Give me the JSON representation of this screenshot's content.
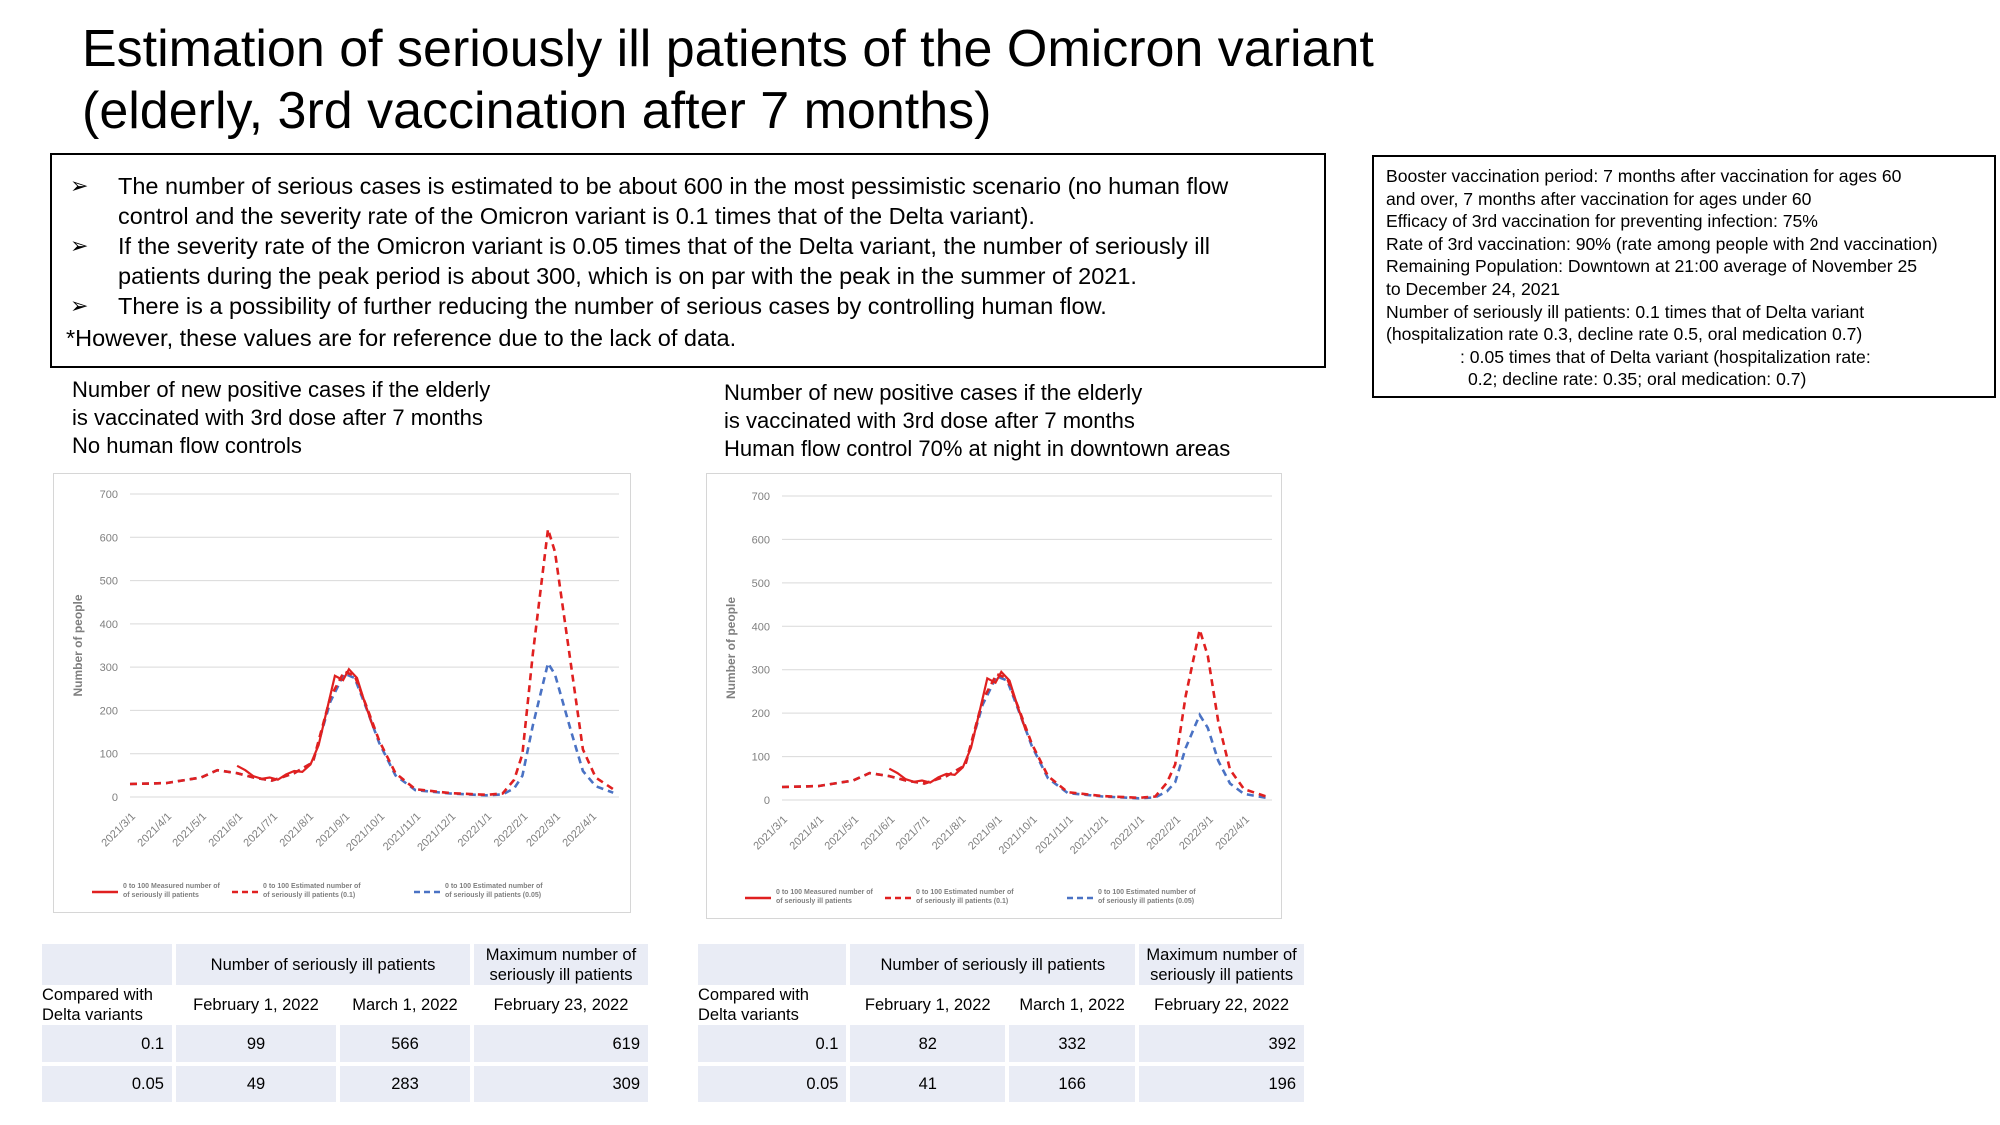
{
  "title": {
    "line1": "Estimation of seriously ill patients of the Omicron variant",
    "line2": "(elderly, 3rd vaccination after 7 months)"
  },
  "summary": {
    "bullets": [
      {
        "line1": "The number of serious cases is estimated to be about 600 in the most pessimistic scenario (no human flow",
        "line2": "control and the severity rate of the Omicron variant is 0.1 times that of the Delta variant)."
      },
      {
        "line1": "If the severity rate of the Omicron variant is 0.05 times that of the Delta variant, the number of seriously ill",
        "line2": "patients during the peak period is about 300, which is on par with the peak in the summer of 2021."
      },
      {
        "line1": "There is a possibility of further reducing the number of serious cases by controlling human flow.",
        "line2": ""
      }
    ],
    "note": "*However, these values are for reference due to the lack of data.",
    "arrow_icon": "➢"
  },
  "params": {
    "lines": [
      "Booster vaccination period: 7 months after vaccination for ages 60",
      "and over, 7 months after vaccination for ages under 60",
      "Efficacy of 3rd vaccination for preventing infection: 75%",
      "Rate of 3rd vaccination: 90% (rate among people with 2nd vaccination)",
      "Remaining Population: Downtown at 21:00 average of November 25",
      "to December 24, 2021",
      "Number of seriously ill patients: 0.1 times that of Delta variant",
      "(hospitalization rate 0.3, decline rate 0.5, oral medication 0.7)",
      ": 0.05 times that of Delta variant (hospitalization rate:",
      "0.2; decline rate: 0.35; oral medication: 0.7)"
    ]
  },
  "left_panel": {
    "title": [
      "Number of new positive cases if the elderly",
      "is vaccinated with 3rd dose after 7 months",
      "No human flow controls"
    ],
    "table": {
      "header_col2": "Number of seriously ill patients",
      "header_col4": [
        "Maximum number of",
        "seriously ill patients"
      ],
      "row_label": [
        "Compared with",
        "Delta variants"
      ],
      "subheaders": [
        "February 1, 2022",
        "March 1, 2022",
        "February 23, 2022"
      ],
      "rows": [
        {
          "ratio": "0.1",
          "v1": "99",
          "v2": "566",
          "v3": "619"
        },
        {
          "ratio": "0.05",
          "v1": "49",
          "v2": "283",
          "v3": "309"
        }
      ]
    }
  },
  "right_panel": {
    "title": [
      "Number of new positive cases if the elderly",
      "is vaccinated with 3rd dose after 7 months",
      "Human flow control 70% at night in downtown areas"
    ],
    "table": {
      "header_col2": "Number of seriously ill patients",
      "header_col4": [
        "Maximum number of",
        "seriously ill patients"
      ],
      "row_label": [
        "Compared with",
        "Delta variants"
      ],
      "subheaders": [
        "February 1, 2022",
        "March 1, 2022",
        "February 22, 2022"
      ],
      "rows": [
        {
          "ratio": "0.1",
          "v1": "82",
          "v2": "332",
          "v3": "392"
        },
        {
          "ratio": "0.05",
          "v1": "41",
          "v2": "166",
          "v3": "196"
        }
      ]
    }
  },
  "colors": {
    "measured": "#e02020",
    "est01": "#e02020",
    "est005": "#4a72c4",
    "grid": "#d9d9d9",
    "axis_text": "#7f7f7f",
    "table_shade": "#e9ecf5"
  },
  "chart_data": [
    {
      "type": "line",
      "title": "",
      "ylabel": "Number of people",
      "ylim": [
        0,
        700
      ],
      "yticks": [
        0,
        100,
        200,
        300,
        400,
        500,
        600,
        700
      ],
      "xticks": [
        "2021/3/1",
        "2021/4/1",
        "2021/5/1",
        "2021/6/1",
        "2021/7/1",
        "2021/8/1",
        "2021/9/1",
        "2021/10/1",
        "2021/11/1",
        "2021/12/1",
        "2022/1/1",
        "2022/2/1",
        "2022/3/1",
        "2022/4/1"
      ],
      "grid": true,
      "legend": "bottom",
      "legend_entries": [
        "0 to 100 Measured number of seriously ill patients",
        "0 to 100 Estimated number of seriously ill patients (0.1)",
        "0 to 100 Estimated number of seriously ill patients (0.05)"
      ],
      "series": [
        {
          "name": "0 to 100 Measured number of seriously ill patients",
          "style": "solid",
          "points": [
            [
              "2021/6/1",
              72
            ],
            [
              "2021/6/8",
              62
            ],
            [
              "2021/6/15",
              48
            ],
            [
              "2021/6/22",
              42
            ],
            [
              "2021/6/29",
              45
            ],
            [
              "2021/7/6",
              40
            ],
            [
              "2021/7/13",
              52
            ],
            [
              "2021/7/20",
              60
            ],
            [
              "2021/7/27",
              58
            ],
            [
              "2021/8/3",
              75
            ],
            [
              "2021/8/10",
              120
            ],
            [
              "2021/8/17",
              200
            ],
            [
              "2021/8/24",
              280
            ],
            [
              "2021/8/31",
              270
            ],
            [
              "2021/9/5",
              295
            ],
            [
              "2021/9/12",
              275
            ],
            [
              "2021/9/19",
              215
            ],
            [
              "2021/9/26",
              160
            ]
          ]
        },
        {
          "name": "0 to 100 Estimated number of seriously ill patients (0.1)",
          "style": "dashed",
          "points": [
            [
              "2021/3/1",
              30
            ],
            [
              "2021/4/1",
              32
            ],
            [
              "2021/5/1",
              45
            ],
            [
              "2021/5/15",
              62
            ],
            [
              "2021/6/1",
              55
            ],
            [
              "2021/6/15",
              45
            ],
            [
              "2021/7/1",
              38
            ],
            [
              "2021/7/20",
              55
            ],
            [
              "2021/8/5",
              80
            ],
            [
              "2021/8/20",
              230
            ],
            [
              "2021/9/1",
              290
            ],
            [
              "2021/9/10",
              280
            ],
            [
              "2021/9/20",
              210
            ],
            [
              "2021/10/1",
              130
            ],
            [
              "2021/10/15",
              55
            ],
            [
              "2021/11/1",
              18
            ],
            [
              "2021/12/1",
              9
            ],
            [
              "2022/1/1",
              5
            ],
            [
              "2022/1/15",
              8
            ],
            [
              "2022/1/25",
              40
            ],
            [
              "2022/2/1",
              99
            ],
            [
              "2022/2/10",
              330
            ],
            [
              "2022/2/23",
              619
            ],
            [
              "2022/3/1",
              566
            ],
            [
              "2022/3/15",
              300
            ],
            [
              "2022/3/25",
              110
            ],
            [
              "2022/4/5",
              45
            ],
            [
              "2022/4/20",
              18
            ]
          ]
        },
        {
          "name": "0 to 100 Estimated number of seriously ill patients (0.05)",
          "style": "dashed",
          "points": [
            [
              "2021/3/1",
              30
            ],
            [
              "2021/4/1",
              32
            ],
            [
              "2021/5/1",
              45
            ],
            [
              "2021/5/15",
              62
            ],
            [
              "2021/6/1",
              55
            ],
            [
              "2021/6/15",
              45
            ],
            [
              "2021/7/1",
              38
            ],
            [
              "2021/7/20",
              55
            ],
            [
              "2021/8/5",
              80
            ],
            [
              "2021/8/20",
              220
            ],
            [
              "2021/9/1",
              285
            ],
            [
              "2021/9/10",
              275
            ],
            [
              "2021/9/20",
              205
            ],
            [
              "2021/10/1",
              125
            ],
            [
              "2021/10/15",
              50
            ],
            [
              "2021/11/1",
              16
            ],
            [
              "2021/12/1",
              8
            ],
            [
              "2022/1/1",
              4
            ],
            [
              "2022/1/15",
              6
            ],
            [
              "2022/1/25",
              20
            ],
            [
              "2022/2/1",
              49
            ],
            [
              "2022/2/10",
              165
            ],
            [
              "2022/2/23",
              309
            ],
            [
              "2022/3/1",
              283
            ],
            [
              "2022/3/15",
              150
            ],
            [
              "2022/3/25",
              60
            ],
            [
              "2022/4/5",
              25
            ],
            [
              "2022/4/20",
              10
            ]
          ]
        }
      ]
    },
    {
      "type": "line",
      "title": "",
      "ylabel": "Number of people",
      "ylim": [
        0,
        700
      ],
      "yticks": [
        0,
        100,
        200,
        300,
        400,
        500,
        600,
        700
      ],
      "xticks": [
        "2021/3/1",
        "2021/4/1",
        "2021/5/1",
        "2021/6/1",
        "2021/7/1",
        "2021/8/1",
        "2021/9/1",
        "2021/10/1",
        "2021/11/1",
        "2021/12/1",
        "2022/1/1",
        "2022/2/1",
        "2022/3/1",
        "2022/4/1"
      ],
      "grid": true,
      "legend": "bottom",
      "legend_entries": [
        "0 to 100 Measured number of seriously ill patients",
        "0 to 100 Estimated number of seriously ill patients (0.1)",
        "0 to 100 Estimated number of seriously ill patients (0.05)"
      ],
      "series": [
        {
          "name": "0 to 100 Measured number of seriously ill patients",
          "style": "solid",
          "points": [
            [
              "2021/6/1",
              72
            ],
            [
              "2021/6/8",
              62
            ],
            [
              "2021/6/15",
              48
            ],
            [
              "2021/6/22",
              42
            ],
            [
              "2021/6/29",
              45
            ],
            [
              "2021/7/6",
              40
            ],
            [
              "2021/7/13",
              52
            ],
            [
              "2021/7/20",
              60
            ],
            [
              "2021/7/27",
              58
            ],
            [
              "2021/8/3",
              75
            ],
            [
              "2021/8/10",
              120
            ],
            [
              "2021/8/17",
              200
            ],
            [
              "2021/8/24",
              280
            ],
            [
              "2021/8/31",
              270
            ],
            [
              "2021/9/5",
              295
            ],
            [
              "2021/9/12",
              275
            ],
            [
              "2021/9/19",
              215
            ],
            [
              "2021/9/26",
              160
            ]
          ]
        },
        {
          "name": "0 to 100 Estimated number of seriously ill patients (0.1)",
          "style": "dashed",
          "points": [
            [
              "2021/3/1",
              30
            ],
            [
              "2021/4/1",
              32
            ],
            [
              "2021/5/1",
              45
            ],
            [
              "2021/5/15",
              62
            ],
            [
              "2021/6/1",
              55
            ],
            [
              "2021/6/15",
              45
            ],
            [
              "2021/7/1",
              38
            ],
            [
              "2021/7/20",
              55
            ],
            [
              "2021/8/5",
              80
            ],
            [
              "2021/8/20",
              230
            ],
            [
              "2021/9/1",
              290
            ],
            [
              "2021/9/10",
              280
            ],
            [
              "2021/9/20",
              210
            ],
            [
              "2021/10/1",
              130
            ],
            [
              "2021/10/15",
              55
            ],
            [
              "2021/11/1",
              18
            ],
            [
              "2021/12/1",
              9
            ],
            [
              "2022/1/1",
              5
            ],
            [
              "2022/1/15",
              8
            ],
            [
              "2022/1/25",
              40
            ],
            [
              "2022/2/1",
              82
            ],
            [
              "2022/2/10",
              240
            ],
            [
              "2022/2/22",
              392
            ],
            [
              "2022/3/1",
              332
            ],
            [
              "2022/3/10",
              180
            ],
            [
              "2022/3/20",
              70
            ],
            [
              "2022/4/1",
              25
            ],
            [
              "2022/4/20",
              8
            ]
          ]
        },
        {
          "name": "0 to 100 Estimated number of seriously ill patients (0.05)",
          "style": "dashed",
          "points": [
            [
              "2021/3/1",
              30
            ],
            [
              "2021/4/1",
              32
            ],
            [
              "2021/5/1",
              45
            ],
            [
              "2021/5/15",
              62
            ],
            [
              "2021/6/1",
              55
            ],
            [
              "2021/6/15",
              45
            ],
            [
              "2021/7/1",
              38
            ],
            [
              "2021/7/20",
              55
            ],
            [
              "2021/8/5",
              80
            ],
            [
              "2021/8/20",
              220
            ],
            [
              "2021/9/1",
              285
            ],
            [
              "2021/9/10",
              275
            ],
            [
              "2021/9/20",
              205
            ],
            [
              "2021/10/1",
              125
            ],
            [
              "2021/10/15",
              50
            ],
            [
              "2021/11/1",
              16
            ],
            [
              "2021/12/1",
              8
            ],
            [
              "2022/1/1",
              4
            ],
            [
              "2022/1/15",
              6
            ],
            [
              "2022/1/25",
              20
            ],
            [
              "2022/2/1",
              41
            ],
            [
              "2022/2/10",
              120
            ],
            [
              "2022/2/22",
              196
            ],
            [
              "2022/3/1",
              166
            ],
            [
              "2022/3/10",
              90
            ],
            [
              "2022/3/20",
              38
            ],
            [
              "2022/4/1",
              14
            ],
            [
              "2022/4/20",
              5
            ]
          ]
        }
      ]
    }
  ]
}
